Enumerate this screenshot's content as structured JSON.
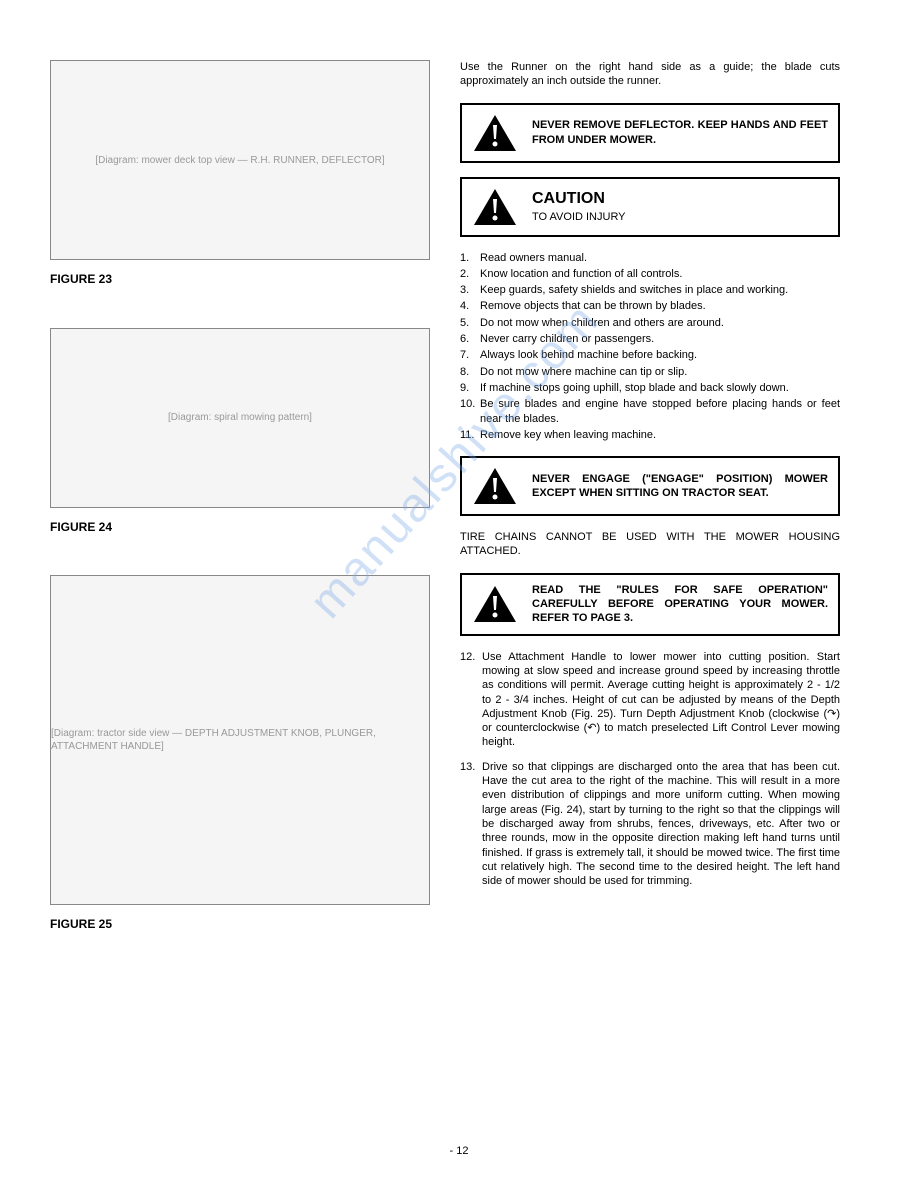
{
  "watermark_text": "manualshive.com",
  "page_number": "- 12",
  "left": {
    "fig23_placeholder": "[Diagram: mower deck top view — R.H. RUNNER, DEFLECTOR]",
    "fig23_caption": "FIGURE 23",
    "fig24_placeholder": "[Diagram: spiral mowing pattern]",
    "fig24_caption": "FIGURE 24",
    "fig25_placeholder": "[Diagram: tractor side view — DEPTH ADJUSTMENT KNOB, PLUNGER, ATTACHMENT HANDLE]",
    "fig25_caption": "FIGURE 25"
  },
  "right": {
    "intro": "Use the Runner on the right hand side as a guide; the blade cuts approximately an inch outside the runner.",
    "warning1": "NEVER REMOVE DEFLECTOR. KEEP HANDS AND FEET FROM UNDER MOWER.",
    "caution_heading": "CAUTION",
    "caution_sub": "TO AVOID INJURY",
    "caution_items": [
      {
        "n": "1.",
        "t": "Read owners manual."
      },
      {
        "n": "2.",
        "t": "Know location and function of all controls."
      },
      {
        "n": "3.",
        "t": "Keep guards, safety shields and switches in place and working."
      },
      {
        "n": "4.",
        "t": "Remove objects that can be thrown by blades."
      },
      {
        "n": "5.",
        "t": "Do not mow when children and others are around."
      },
      {
        "n": "6.",
        "t": "Never carry children or passengers."
      },
      {
        "n": "7.",
        "t": "Always look behind machine before backing."
      },
      {
        "n": "8.",
        "t": "Do not mow where machine can tip or slip."
      },
      {
        "n": "9.",
        "t": "If machine stops going uphill, stop blade and back slowly down."
      },
      {
        "n": "10.",
        "t": "Be sure blades and engine have stopped before placing hands or feet near the blades."
      },
      {
        "n": "11.",
        "t": "Remove key when leaving machine."
      }
    ],
    "warning2": "NEVER ENGAGE (\"ENGAGE\" POSITION) MOWER EXCEPT WHEN SITTING ON TRACTOR SEAT.",
    "tire_note": "TIRE CHAINS CANNOT BE USED WITH THE MOWER HOUSING ATTACHED.",
    "warning3": "READ THE \"RULES FOR SAFE OPERATION\" CAREFULLY BEFORE OPERATING YOUR MOWER. REFER TO PAGE 3.",
    "paras": [
      {
        "n": "12.",
        "t": "Use Attachment Handle to lower mower into cutting position. Start mowing at slow speed and increase ground speed by increasing throttle as conditions will permit. Average cutting height is approximately 2 - 1/2 to 2 - 3/4 inches. Height of cut can be adjusted by means of the Depth Adjustment Knob (Fig. 25). Turn Depth Adjustment Knob (clockwise (↷) or counterclockwise (↶) to match preselected Lift Control Lever mowing height."
      },
      {
        "n": "13.",
        "t": "Drive so that clippings are discharged onto the area that has been cut. Have the cut area to the right of the machine. This will result in a more even distribution of clippings and more uniform cutting. When mowing large areas (Fig. 24), start by turning to the right so that the clippings will be discharged away from shrubs, fences, driveways, etc. After two or three rounds, mow in the opposite direction making left hand turns until finished. If grass is extremely tall, it should be mowed twice. The first time cut relatively high. The second time to the desired height. The left hand side of mower should be used for trimming."
      }
    ]
  }
}
